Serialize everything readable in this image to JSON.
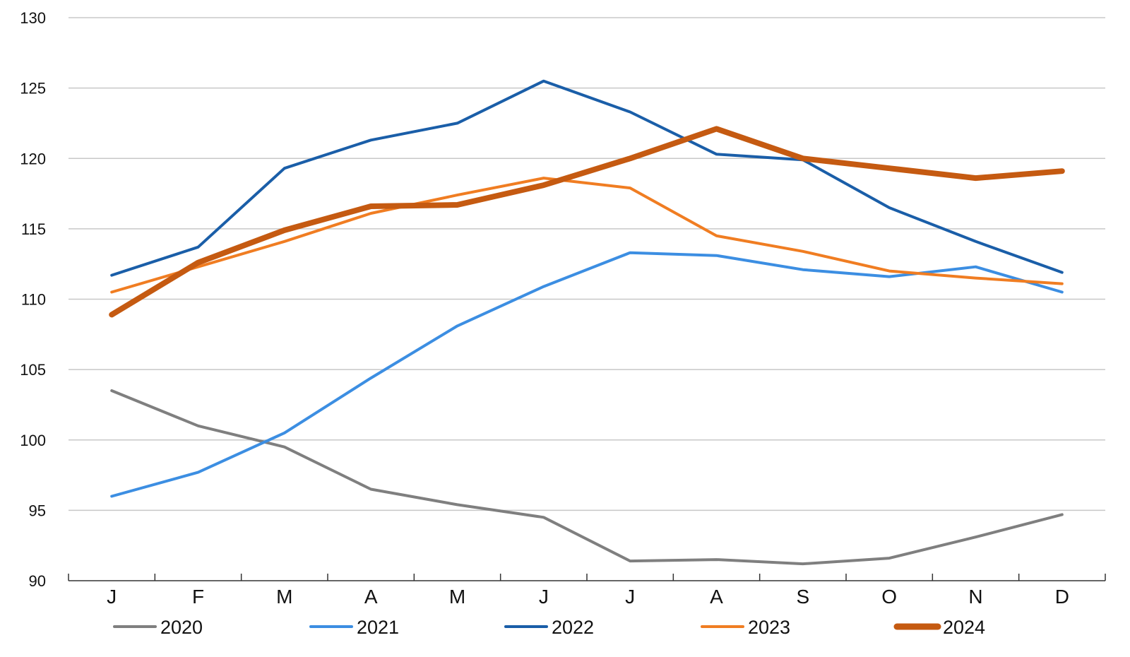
{
  "chart_data": {
    "type": "line",
    "title": "",
    "xlabel": "",
    "ylabel": "",
    "categories": [
      "J",
      "F",
      "M",
      "A",
      "M",
      "J",
      "J",
      "A",
      "S",
      "O",
      "N",
      "D"
    ],
    "ylim": [
      90,
      130
    ],
    "yticks": [
      90,
      95,
      100,
      105,
      110,
      115,
      120,
      125,
      130
    ],
    "grid": "horizontal",
    "legend": "bottom",
    "series": [
      {
        "name": "2020",
        "color": "#7f7f7f",
        "emphasis": "normal",
        "values": [
          103.5,
          101.0,
          99.5,
          96.5,
          95.4,
          94.5,
          91.4,
          91.5,
          91.2,
          91.6,
          93.1,
          94.7
        ]
      },
      {
        "name": "2021",
        "color": "#3c8ee2",
        "emphasis": "normal",
        "values": [
          96.0,
          97.7,
          100.5,
          104.4,
          108.1,
          110.9,
          113.3,
          113.1,
          112.1,
          111.6,
          112.3,
          110.5
        ]
      },
      {
        "name": "2022",
        "color": "#1a5ea8",
        "emphasis": "normal",
        "values": [
          111.7,
          113.7,
          119.3,
          121.3,
          122.5,
          125.5,
          123.3,
          120.3,
          119.9,
          116.5,
          114.1,
          111.9
        ]
      },
      {
        "name": "2023",
        "color": "#f07d22",
        "emphasis": "normal",
        "values": [
          110.5,
          112.3,
          114.1,
          116.1,
          117.4,
          118.6,
          117.9,
          114.5,
          113.4,
          112.0,
          111.5,
          111.1
        ]
      },
      {
        "name": "2024",
        "color": "#c55a11",
        "emphasis": "bold",
        "values": [
          108.9,
          112.6,
          114.9,
          116.6,
          116.7,
          118.1,
          120.0,
          122.1,
          120.0,
          119.3,
          118.6,
          119.1
        ]
      }
    ]
  }
}
